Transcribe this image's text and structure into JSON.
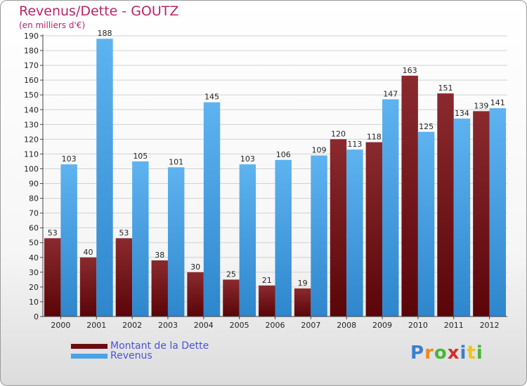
{
  "chart": {
    "title": "Revenus/Dette - GOUTZ",
    "subtitle": "(en milliers d'€)"
  },
  "legend": [
    {
      "label": "Montant de la Dette",
      "color": "#6b0d10"
    },
    {
      "label": "Revenus",
      "color": "#4aa3e6"
    }
  ],
  "logo": {
    "letters": [
      "P",
      "r",
      "o",
      "x",
      "i",
      "t",
      "i"
    ],
    "colors": [
      "#3a7fd0",
      "#f08a1c",
      "#4bb33a",
      "#d62d2d",
      "#3a7fd0",
      "#f0c21c",
      "#4bb33a"
    ]
  },
  "chart_data": {
    "type": "bar",
    "title": "Revenus/Dette - GOUTZ",
    "subtitle": "(en milliers d'€)",
    "categories": [
      "2000",
      "2001",
      "2002",
      "2003",
      "2004",
      "2005",
      "2006",
      "2007",
      "2008",
      "2009",
      "2010",
      "2011",
      "2012"
    ],
    "series": [
      {
        "name": "Montant de la Dette",
        "color": "#6b0d10",
        "values": [
          53,
          40,
          53,
          38,
          30,
          25,
          21,
          19,
          120,
          118,
          163,
          151,
          139
        ]
      },
      {
        "name": "Revenus",
        "color": "#4aa3e6",
        "values": [
          103,
          188,
          105,
          101,
          145,
          103,
          106,
          109,
          113,
          147,
          125,
          134,
          141
        ]
      }
    ],
    "ylim": [
      0,
      190
    ],
    "ytick_step": 10,
    "grid": true,
    "legend_position": "bottom-left"
  }
}
